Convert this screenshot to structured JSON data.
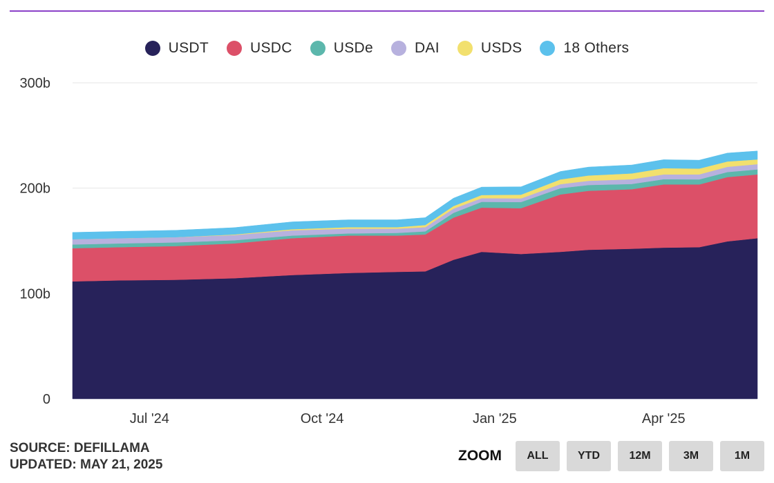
{
  "chart_data": {
    "type": "area",
    "stacked": true,
    "title": "",
    "xlabel": "",
    "ylabel": "",
    "ylim": [
      0,
      300
    ],
    "yticks": [
      {
        "value": 0,
        "label": "0"
      },
      {
        "value": 100,
        "label": "100b"
      },
      {
        "value": 200,
        "label": "200b"
      },
      {
        "value": 300,
        "label": "300b"
      }
    ],
    "xlim": [
      "2024-05-21",
      "2025-05-21"
    ],
    "xticks": [
      {
        "date": "2024-07-01",
        "label": "Jul '24"
      },
      {
        "date": "2024-10-01",
        "label": "Oct '24"
      },
      {
        "date": "2025-01-01",
        "label": "Jan '25"
      },
      {
        "date": "2025-04-01",
        "label": "Apr '25"
      }
    ],
    "grid": true,
    "legend_position": "top",
    "x": [
      "2024-05-21",
      "2024-06-15",
      "2024-07-15",
      "2024-08-15",
      "2024-09-15",
      "2024-10-15",
      "2024-11-10",
      "2024-11-25",
      "2024-12-10",
      "2024-12-25",
      "2025-01-15",
      "2025-02-05",
      "2025-02-20",
      "2025-03-15",
      "2025-04-01",
      "2025-04-20",
      "2025-05-05",
      "2025-05-21"
    ],
    "series": [
      {
        "name": "USDT",
        "color": "#27225a",
        "values": [
          111.5,
          112.5,
          113.0,
          114.5,
          117.5,
          119.5,
          120.5,
          121.0,
          132.0,
          139.5,
          137.5,
          139.5,
          141.5,
          142.5,
          143.5,
          144.0,
          149.5,
          152.5
        ]
      },
      {
        "name": "USDC",
        "color": "#dc5068",
        "values": [
          31.5,
          31.5,
          32.0,
          33.0,
          35.0,
          35.5,
          34.5,
          35.0,
          40.0,
          42.0,
          43.5,
          54.5,
          56.0,
          56.5,
          60.0,
          59.5,
          61.0,
          60.5
        ]
      },
      {
        "name": "USDe",
        "color": "#5cb7ac",
        "values": [
          3.5,
          3.5,
          3.5,
          3.0,
          2.5,
          2.0,
          2.5,
          3.0,
          4.5,
          5.5,
          5.8,
          6.0,
          5.5,
          5.0,
          5.0,
          4.8,
          4.8,
          4.8
        ]
      },
      {
        "name": "DAI",
        "color": "#b7b1de",
        "values": [
          5.0,
          5.0,
          5.0,
          5.0,
          5.0,
          4.5,
          4.0,
          4.0,
          4.0,
          3.5,
          3.5,
          3.8,
          4.0,
          4.5,
          4.5,
          4.8,
          5.0,
          5.0
        ]
      },
      {
        "name": "USDS",
        "color": "#f2e06e",
        "values": [
          0.0,
          0.0,
          0.0,
          0.5,
          1.0,
          1.5,
          1.5,
          2.0,
          2.5,
          3.0,
          3.5,
          4.5,
          5.0,
          5.5,
          6.0,
          5.5,
          5.0,
          4.5
        ]
      },
      {
        "name": "18 Others",
        "color": "#5cc1ec",
        "values": [
          6.5,
          6.5,
          6.5,
          6.5,
          7.0,
          7.0,
          7.0,
          7.0,
          7.5,
          7.5,
          7.5,
          7.5,
          8.0,
          8.0,
          8.0,
          8.0,
          8.0,
          8.0
        ]
      }
    ]
  },
  "footer": {
    "source": "SOURCE: DEFILLAMA",
    "updated": "UPDATED: MAY 21, 2025"
  },
  "zoom": {
    "label": "ZOOM",
    "buttons": [
      "ALL",
      "YTD",
      "12M",
      "3M",
      "1M"
    ]
  }
}
